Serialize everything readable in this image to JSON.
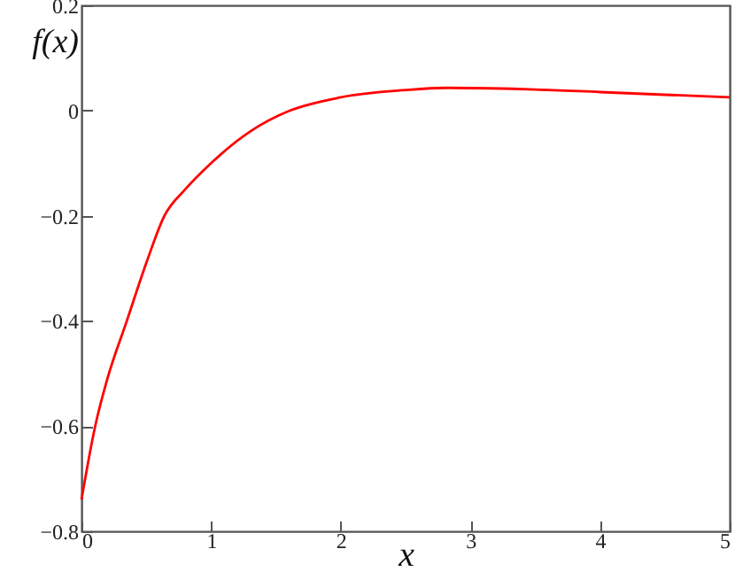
{
  "chart_data": {
    "type": "line",
    "xlabel": "x",
    "ylabel": "f(x)",
    "x": [
      0,
      0.106,
      0.2,
      0.35,
      0.5,
      0.64,
      0.8,
      1,
      1.3,
      1.61,
      2,
      2.5,
      2.8,
      3.5,
      4,
      4.5,
      5
    ],
    "series": [
      {
        "color": "#ff0000",
        "values": [
          -0.74,
          -0.6,
          -0.51,
          -0.4,
          -0.29,
          -0.2,
          -0.15,
          -0.1,
          -0.04,
          0,
          0.025,
          0.039,
          0.043,
          0.04,
          0.035,
          0.03,
          0.025
        ]
      }
    ],
    "xlim": [
      0,
      5
    ],
    "xticks": [
      0,
      1,
      2,
      3,
      4,
      5
    ],
    "ylim": [
      -0.8,
      0.2
    ],
    "yticks": [
      -0.8,
      -0.6,
      -0.4,
      -0.2,
      0,
      0.2
    ],
    "grid": false,
    "marker": "none",
    "line_style": "solid"
  }
}
